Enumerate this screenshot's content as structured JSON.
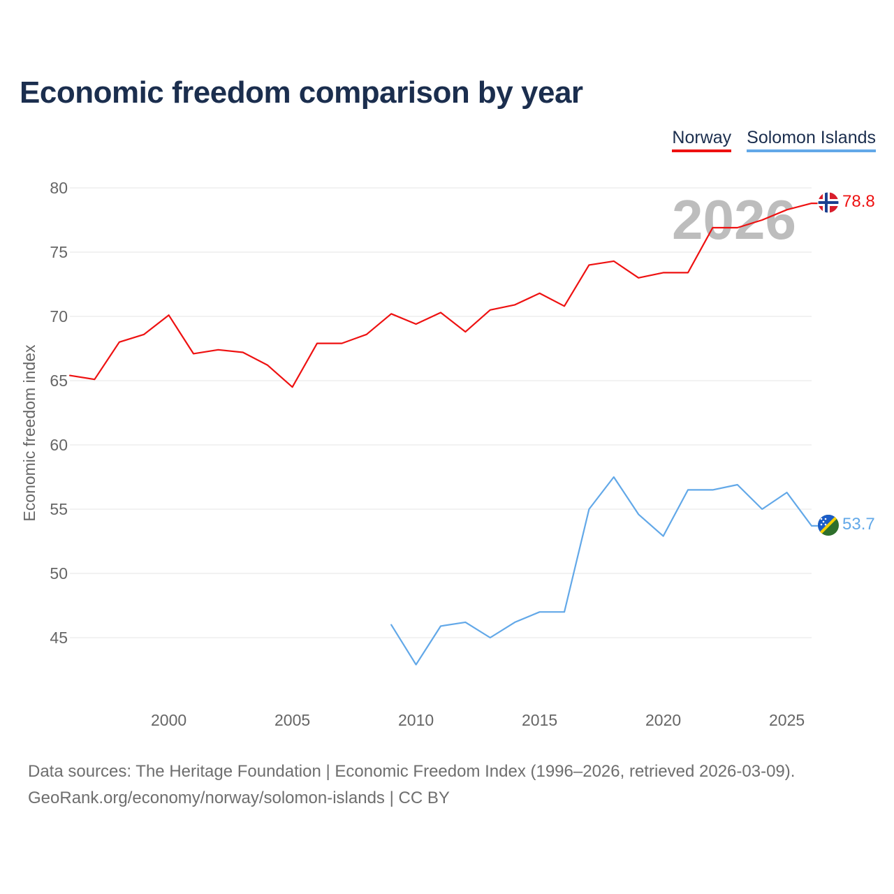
{
  "title": "Economic freedom comparison by year",
  "legend": [
    {
      "name": "Norway",
      "color": "#ee1111"
    },
    {
      "name": "Solomon Islands",
      "color": "#62a8e8"
    }
  ],
  "chart_data": {
    "type": "line",
    "title": "Economic freedom comparison by year",
    "xlabel": "",
    "ylabel": "Economic freedom index",
    "xlim": [
      1996,
      2026
    ],
    "ylim": [
      40,
      80
    ],
    "x_ticks": [
      2000,
      2005,
      2010,
      2015,
      2020,
      2025
    ],
    "y_ticks": [
      45,
      50,
      55,
      60,
      65,
      70,
      75,
      80
    ],
    "grid": true,
    "current_year_label": "2026",
    "series": [
      {
        "name": "Norway",
        "color": "#ee1111",
        "end_label": "78.8",
        "flag": "norway-flag-icon",
        "x": [
          1996,
          1997,
          1998,
          1999,
          2000,
          2001,
          2002,
          2003,
          2004,
          2005,
          2006,
          2007,
          2008,
          2009,
          2010,
          2011,
          2012,
          2013,
          2014,
          2015,
          2016,
          2017,
          2018,
          2019,
          2020,
          2021,
          2022,
          2023,
          2024,
          2025,
          2026
        ],
        "values": [
          65.4,
          65.1,
          68.0,
          68.6,
          70.1,
          67.1,
          67.4,
          67.2,
          66.2,
          64.5,
          67.9,
          67.9,
          68.6,
          70.2,
          69.4,
          70.3,
          68.8,
          70.5,
          70.9,
          71.8,
          70.8,
          74.0,
          74.3,
          73.0,
          73.4,
          73.4,
          76.9,
          76.9,
          77.5,
          78.3,
          78.8
        ]
      },
      {
        "name": "Solomon Islands",
        "color": "#62a8e8",
        "end_label": "53.7",
        "flag": "solomon-islands-flag-icon",
        "x": [
          2009,
          2010,
          2011,
          2012,
          2013,
          2014,
          2015,
          2016,
          2017,
          2018,
          2019,
          2020,
          2021,
          2022,
          2023,
          2024,
          2025,
          2026
        ],
        "values": [
          46.0,
          42.9,
          45.9,
          46.2,
          45.0,
          46.2,
          47.0,
          47.0,
          55.0,
          57.5,
          54.6,
          52.9,
          56.5,
          56.5,
          56.9,
          55.0,
          56.3,
          53.7
        ]
      }
    ]
  },
  "footer": {
    "line1": "Data sources: The Heritage Foundation | Economic Freedom Index (1996–2026, retrieved 2026-03-09).",
    "line2": "GeoRank.org/economy/norway/solomon-islands | CC BY"
  }
}
